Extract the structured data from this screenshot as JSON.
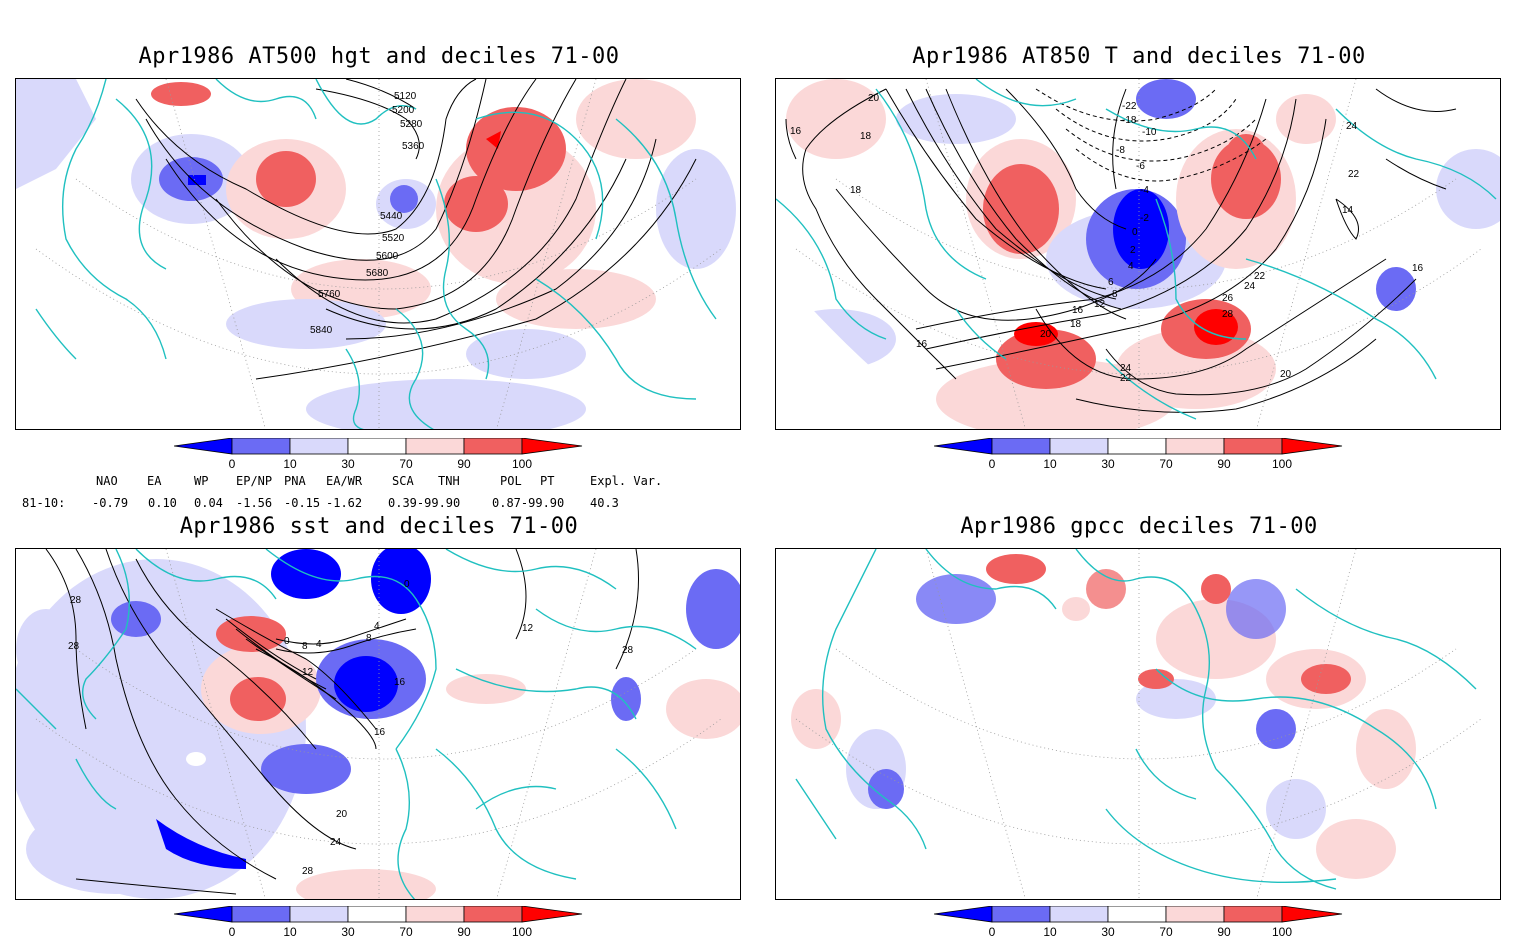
{
  "panels": [
    {
      "id": "p1",
      "title": "Apr1986 AT500 hgt and deciles 71-00",
      "contour_labels": [
        "5120",
        "5200",
        "5280",
        "5360",
        "5440",
        "5520",
        "5600",
        "5680",
        "5760",
        "5840"
      ]
    },
    {
      "id": "p2",
      "title": "Apr1986 AT850 T and deciles 71-00",
      "contour_labels": [
        "20",
        "18",
        "16",
        "18",
        "16",
        "-22",
        "-18",
        "-10",
        "-8",
        "-6",
        "-4",
        "-2",
        "0",
        "2",
        "4",
        "6",
        "8",
        "12",
        "16",
        "18",
        "20",
        "22",
        "24",
        "26",
        "28",
        "24",
        "22",
        "24",
        "22",
        "20",
        "16",
        "14"
      ]
    },
    {
      "id": "p3",
      "title": "Apr1986 sst and deciles 71-00",
      "contour_labels": [
        "28",
        "28",
        "0",
        "4",
        "8",
        "0",
        "4",
        "8",
        "12",
        "16",
        "16",
        "20",
        "24",
        "28",
        "12",
        "28"
      ]
    },
    {
      "id": "p4",
      "title": "Apr1986 gpcc deciles 71-00",
      "contour_labels": []
    }
  ],
  "colorbar": {
    "ticks": [
      "0",
      "10",
      "30",
      "70",
      "90",
      "100"
    ],
    "colors": [
      "#0000ff",
      "#6b6bf4",
      "#d9d9fb",
      "#ffffff",
      "#fbd8d8",
      "#f06060",
      "#ff0000"
    ]
  },
  "indices": {
    "headers": [
      "NAO",
      "EA",
      "WP",
      "EP/NP",
      "PNA",
      "EA/WR",
      "SCA",
      "TNH",
      "POL",
      "PT",
      "Expl. Var."
    ],
    "row_label": "81-10:",
    "values": [
      "-0.79",
      "0.10",
      "0.04",
      "-1.56",
      "-0.15",
      "-1.62",
      "0.39-99.90",
      "0.87-99.90",
      "40.3"
    ]
  }
}
